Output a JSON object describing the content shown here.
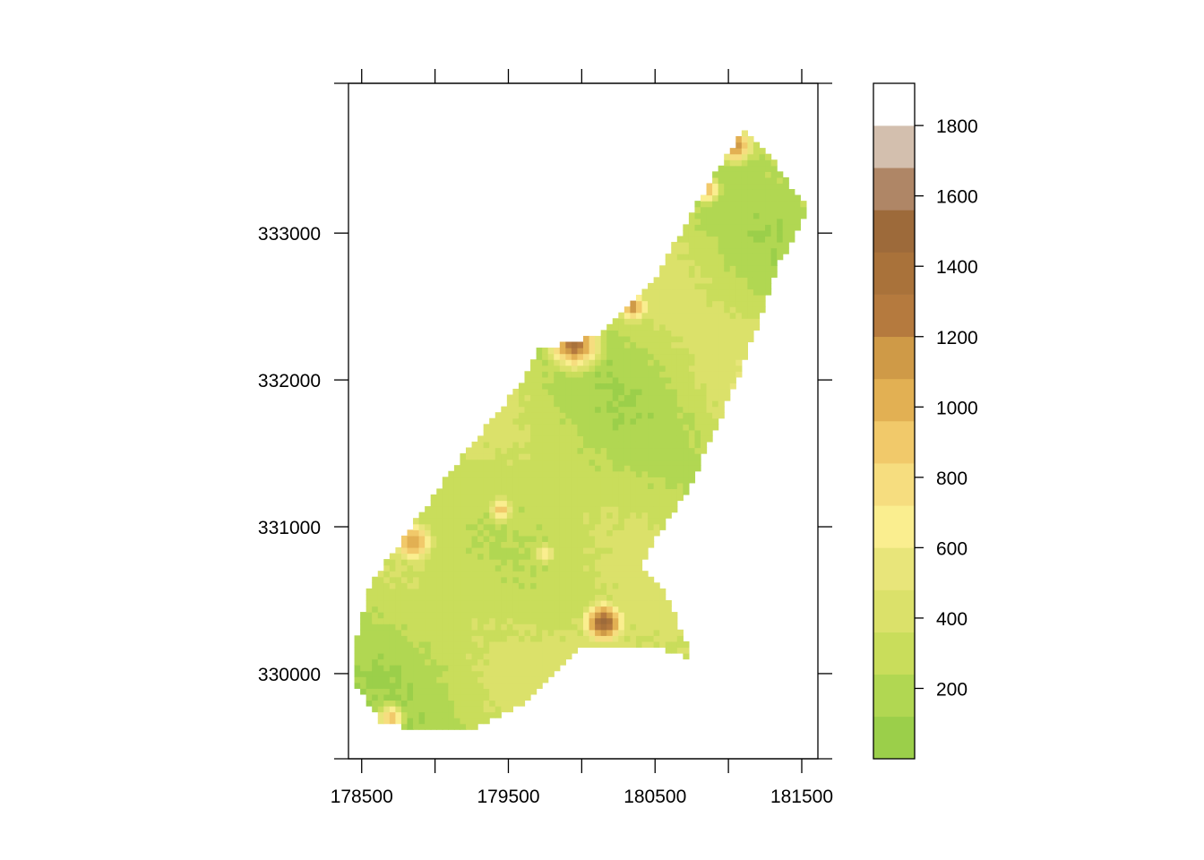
{
  "chart_data": {
    "type": "heatmap",
    "title": "",
    "xlabel": "",
    "ylabel": "",
    "x_ticks": [
      {
        "value": 178500,
        "label": "178500"
      },
      {
        "value": 179000,
        "label": ""
      },
      {
        "value": 179500,
        "label": "179500"
      },
      {
        "value": 180000,
        "label": ""
      },
      {
        "value": 180500,
        "label": "180500"
      },
      {
        "value": 181000,
        "label": ""
      },
      {
        "value": 181500,
        "label": "181500"
      }
    ],
    "y_ticks": [
      {
        "value": 330000,
        "label": "330000"
      },
      {
        "value": 331000,
        "label": "331000"
      },
      {
        "value": 332000,
        "label": "332000"
      },
      {
        "value": 333000,
        "label": "333000"
      }
    ],
    "xlim": [
      178410,
      181610
    ],
    "ylim": [
      329420,
      334020
    ],
    "colorbar": {
      "range": [
        0,
        1920
      ],
      "tick_values": [
        200,
        400,
        600,
        800,
        1000,
        1200,
        1400,
        1600,
        1800
      ],
      "tick_labels": [
        "200",
        "400",
        "600",
        "800",
        "1000",
        "1200",
        "1400",
        "1600",
        "1800"
      ],
      "color_steps": [
        "#9bcf4a",
        "#b1d752",
        "#c9dd5b",
        "#dbe16a",
        "#e8e57a",
        "#faee8f",
        "#f6dd7f",
        "#f1c96a",
        "#e2b053",
        "#cf9a47",
        "#b57a3e",
        "#a9723a",
        "#9d6a3a",
        "#af8666",
        "#d3bfae",
        "#ffffff"
      ]
    },
    "region": {
      "description_points": [
        [
          178460,
          330200
        ],
        [
          178560,
          330600
        ],
        [
          178800,
          330950
        ],
        [
          179200,
          331500
        ],
        [
          179600,
          332000
        ],
        [
          179700,
          332200
        ],
        [
          180100,
          332300
        ],
        [
          180500,
          332700
        ],
        [
          180900,
          333400
        ],
        [
          181100,
          333700
        ],
        [
          181300,
          333500
        ],
        [
          181550,
          333150
        ],
        [
          181350,
          332800
        ],
        [
          181100,
          332100
        ],
        [
          180750,
          331300
        ],
        [
          180400,
          330750
        ],
        [
          180600,
          330500
        ],
        [
          180750,
          330100
        ],
        [
          180450,
          330200
        ],
        [
          180000,
          330200
        ],
        [
          179600,
          329800
        ],
        [
          179200,
          329600
        ],
        [
          178650,
          329650
        ],
        [
          178450,
          329950
        ]
      ],
      "hotspots": [
        {
          "x": 180150,
          "y": 330350,
          "value": 1450,
          "radius": 110
        },
        {
          "x": 179950,
          "y": 332250,
          "value": 1350,
          "radius": 130
        },
        {
          "x": 180350,
          "y": 332500,
          "value": 1150,
          "radius": 80
        },
        {
          "x": 181050,
          "y": 333600,
          "value": 1200,
          "radius": 90
        },
        {
          "x": 180850,
          "y": 333300,
          "value": 1000,
          "radius": 70
        },
        {
          "x": 178850,
          "y": 330900,
          "value": 1100,
          "radius": 110
        },
        {
          "x": 179450,
          "y": 331120,
          "value": 900,
          "radius": 70
        },
        {
          "x": 179750,
          "y": 330820,
          "value": 700,
          "radius": 60
        },
        {
          "x": 178700,
          "y": 329700,
          "value": 950,
          "radius": 70
        }
      ],
      "base_value": 320
    }
  }
}
